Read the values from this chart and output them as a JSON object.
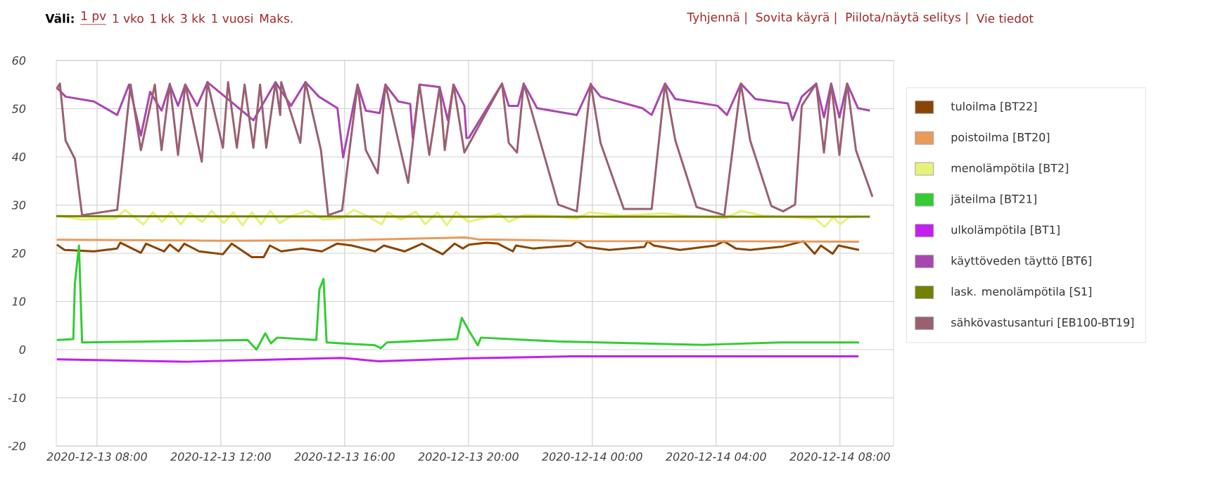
{
  "chart_data": {
    "type": "line",
    "annotations": [
      "Väli:",
      "1 pv",
      "1 vko",
      "1 kk",
      "3 kk",
      "1 vuosi",
      "Maks.",
      "Tyhjennä |",
      "Sovita käyrä |",
      "Piilota/näytä selitys |",
      "Vie tiedot"
    ],
    "xlim": [
      "2020-12-13T06:41",
      "2020-12-14T09:44"
    ],
    "ylim": [
      -20,
      60
    ],
    "xticks": [
      {
        "value": "2020-12-13T08:00",
        "label": "2020-12-13 08:00"
      },
      {
        "value": "2020-12-13T12:00",
        "label": "2020-12-13 12:00"
      },
      {
        "value": "2020-12-13T16:00",
        "label": "2020-12-13 16:00"
      },
      {
        "value": "2020-12-13T20:00",
        "label": "2020-12-13 20:00"
      },
      {
        "value": "2020-12-14T00:00",
        "label": "2020-12-14 00:00"
      },
      {
        "value": "2020-12-14T04:00",
        "label": "2020-12-14 04:00"
      },
      {
        "value": "2020-12-14T08:00",
        "label": "2020-12-14 08:00"
      }
    ],
    "yticks": [
      -20,
      -10,
      0,
      10,
      20,
      30,
      40,
      50,
      60
    ],
    "grid": true,
    "legend": "right",
    "marker": "none",
    "line_style": "solid",
    "series": [
      {
        "name": "tuloilma [BT22]",
        "color": "#8b4400",
        "x": [
          "2020-12-13T06:42",
          "2020-12-13T06:57",
          "2020-12-13T07:54",
          "2020-12-13T08:39",
          "2020-12-13T08:45",
          "2020-12-13T09:25",
          "2020-12-13T09:35",
          "2020-12-13T10:10",
          "2020-12-13T10:21",
          "2020-12-13T10:38",
          "2020-12-13T10:49",
          "2020-12-13T11:18",
          "2020-12-13T12:04",
          "2020-12-13T12:21",
          "2020-12-13T13:00",
          "2020-12-13T13:23",
          "2020-12-13T13:35",
          "2020-12-13T13:57",
          "2020-12-13T14:37",
          "2020-12-13T15:16",
          "2020-12-13T15:45",
          "2020-12-13T16:14",
          "2020-12-13T16:59",
          "2020-12-13T17:16",
          "2020-12-13T17:56",
          "2020-12-13T18:30",
          "2020-12-13T19:10",
          "2020-12-13T19:33",
          "2020-12-13T19:49",
          "2020-12-13T20:01",
          "2020-12-13T20:35",
          "2020-12-13T20:57",
          "2020-12-13T21:26",
          "2020-12-13T21:32",
          "2020-12-13T22:05",
          "2020-12-13T23:19",
          "2020-12-13T23:31",
          "2020-12-13T23:48",
          "2020-12-14T00:33",
          "2020-12-14T01:41",
          "2020-12-14T01:47",
          "2020-12-14T01:59",
          "2020-12-14T02:50",
          "2020-12-14T03:58",
          "2020-12-14T04:15",
          "2020-12-14T04:38",
          "2020-12-14T05:06",
          "2020-12-14T06:09",
          "2020-12-14T06:49",
          "2020-12-14T07:11",
          "2020-12-14T07:23",
          "2020-12-14T07:46",
          "2020-12-14T07:57",
          "2020-12-14T08:37"
        ],
        "values": [
          21.8,
          20.7,
          20.4,
          21.0,
          22.2,
          20.1,
          22.0,
          20.4,
          21.8,
          20.4,
          22.0,
          20.4,
          19.8,
          22.0,
          19.2,
          19.2,
          21.6,
          20.4,
          21.0,
          20.4,
          22.0,
          21.6,
          20.4,
          21.6,
          20.4,
          22.0,
          19.8,
          22.0,
          21.0,
          21.8,
          22.2,
          22.0,
          20.4,
          21.6,
          21.0,
          21.6,
          22.5,
          21.3,
          20.7,
          21.3,
          22.5,
          21.6,
          20.7,
          21.6,
          22.5,
          21.0,
          20.7,
          21.4,
          22.5,
          19.9,
          21.6,
          19.9,
          21.6,
          20.7
        ]
      },
      {
        "name": "poistoilma [BT20]",
        "color": "#e89a58",
        "x": [
          "2020-12-13T06:42",
          "2020-12-13T12:00",
          "2020-12-13T16:00",
          "2020-12-13T19:54",
          "2020-12-13T20:18",
          "2020-12-14T00:00",
          "2020-12-14T04:00",
          "2020-12-14T08:37"
        ],
        "values": [
          22.8,
          22.6,
          22.7,
          23.3,
          22.9,
          22.5,
          22.5,
          22.4
        ]
      },
      {
        "name": "menolämpötila [BT2]",
        "color": "#e6f27a",
        "x": [
          "2020-12-13T06:42",
          "2020-12-13T07:30",
          "2020-12-13T08:36",
          "2020-12-13T08:54",
          "2020-12-13T09:12",
          "2020-12-13T09:30",
          "2020-12-13T09:48",
          "2020-12-13T10:06",
          "2020-12-13T10:24",
          "2020-12-13T10:42",
          "2020-12-13T11:00",
          "2020-12-13T11:24",
          "2020-12-13T11:42",
          "2020-12-13T12:06",
          "2020-12-13T12:24",
          "2020-12-13T12:42",
          "2020-12-13T13:00",
          "2020-12-13T13:18",
          "2020-12-13T13:36",
          "2020-12-13T13:54",
          "2020-12-13T14:18",
          "2020-12-13T14:48",
          "2020-12-13T15:18",
          "2020-12-13T15:54",
          "2020-12-13T16:18",
          "2020-12-13T16:48",
          "2020-12-13T17:12",
          "2020-12-13T17:24",
          "2020-12-13T17:48",
          "2020-12-13T18:18",
          "2020-12-13T18:36",
          "2020-12-13T19:00",
          "2020-12-13T19:18",
          "2020-12-13T19:36",
          "2020-12-13T20:00",
          "2020-12-13T21:00",
          "2020-12-13T21:18",
          "2020-12-13T21:48",
          "2020-12-13T22:30",
          "2020-12-13T23:30",
          "2020-12-13T23:54",
          "2020-12-14T01:00",
          "2020-12-14T02:18",
          "2020-12-14T03:00",
          "2020-12-14T04:18",
          "2020-12-14T04:48",
          "2020-12-14T05:30",
          "2020-12-14T06:30",
          "2020-12-14T07:12",
          "2020-12-14T07:30",
          "2020-12-14T07:48",
          "2020-12-14T08:00",
          "2020-12-14T08:18",
          "2020-12-14T08:36"
        ],
        "values": [
          27.8,
          27.0,
          27.2,
          29.0,
          27.5,
          26.0,
          28.5,
          26.5,
          28.6,
          26.0,
          28.4,
          26.5,
          28.8,
          26.3,
          28.5,
          25.8,
          28.5,
          26.0,
          28.8,
          26.3,
          27.8,
          28.8,
          27.0,
          27.3,
          29.0,
          27.5,
          26.0,
          28.5,
          27.0,
          28.6,
          26.0,
          28.5,
          25.8,
          28.6,
          26.5,
          28.2,
          26.5,
          28.0,
          27.8,
          27.2,
          28.5,
          27.8,
          28.3,
          27.8,
          27.3,
          28.8,
          27.8,
          27.5,
          27.2,
          25.5,
          27.5,
          26.0,
          27.5,
          27.7
        ]
      },
      {
        "name": "jäteilma [BT21]",
        "color": "#33cc33",
        "x": [
          "2020-12-13T06:42",
          "2020-12-13T07:14",
          "2020-12-13T07:17",
          "2020-12-13T07:25",
          "2020-12-13T07:31",
          "2020-12-13T12:52",
          "2020-12-13T13:09",
          "2020-12-13T13:26",
          "2020-12-13T13:37",
          "2020-12-13T13:49",
          "2020-12-13T15:05",
          "2020-12-13T15:11",
          "2020-12-13T15:19",
          "2020-12-13T15:25",
          "2020-12-13T16:59",
          "2020-12-13T17:10",
          "2020-12-13T17:22",
          "2020-12-13T19:38",
          "2020-12-13T19:47",
          "2020-12-13T20:01",
          "2020-12-13T20:18",
          "2020-12-13T20:24",
          "2020-12-13T22:51",
          "2020-12-14T03:35",
          "2020-12-14T06:03",
          "2020-12-14T08:37"
        ],
        "values": [
          2.0,
          2.2,
          13.7,
          21.6,
          1.5,
          2.0,
          0.0,
          3.4,
          1.3,
          2.5,
          2.0,
          12.5,
          14.7,
          1.5,
          0.9,
          0.3,
          1.5,
          2.2,
          6.6,
          3.9,
          0.9,
          2.5,
          1.7,
          1.0,
          1.5,
          1.5
        ]
      },
      {
        "name": "ulkolämpötila [BT1]",
        "color": "#c020f0",
        "x": [
          "2020-12-13T06:42",
          "2020-12-13T10:54",
          "2020-12-13T15:54",
          "2020-12-13T17:06",
          "2020-12-13T20:00",
          "2020-12-13T23:18",
          "2020-12-14T08:36"
        ],
        "values": [
          -2.0,
          -2.5,
          -1.7,
          -2.4,
          -1.8,
          -1.4,
          -1.4
        ]
      },
      {
        "name": "käyttöveden täyttö [BT6]",
        "color": "#a846b0",
        "x": [
          "2020-12-13T06:41",
          "2020-12-13T06:59",
          "2020-12-13T07:54",
          "2020-12-13T08:39",
          "2020-12-13T09:02",
          "2020-12-13T09:25",
          "2020-12-13T09:43",
          "2020-12-13T10:05",
          "2020-12-13T10:21",
          "2020-12-13T10:37",
          "2020-12-13T10:51",
          "2020-12-13T11:14",
          "2020-12-13T11:34",
          "2020-12-13T12:08",
          "2020-12-13T13:03",
          "2020-12-13T13:46",
          "2020-12-13T14:16",
          "2020-12-13T14:44",
          "2020-12-13T15:10",
          "2020-12-13T15:46",
          "2020-12-13T15:57",
          "2020-12-13T16:25",
          "2020-12-13T16:41",
          "2020-12-13T17:08",
          "2020-12-13T17:19",
          "2020-12-13T17:44",
          "2020-12-13T18:07",
          "2020-12-13T18:12",
          "2020-12-13T18:25",
          "2020-12-13T19:04",
          "2020-12-13T19:20",
          "2020-12-13T19:31",
          "2020-12-13T19:52",
          "2020-12-13T19:56",
          "2020-12-13T20:01",
          "2020-12-13T21:05",
          "2020-12-13T21:18",
          "2020-12-13T21:36",
          "2020-12-13T21:47",
          "2020-12-13T22:13",
          "2020-12-13T23:30",
          "2020-12-13T23:57",
          "2020-12-14T00:16",
          "2020-12-14T01:37",
          "2020-12-14T01:55",
          "2020-12-14T02:21",
          "2020-12-14T02:41",
          "2020-12-14T04:03",
          "2020-12-14T04:21",
          "2020-12-14T04:48",
          "2020-12-14T05:16",
          "2020-12-14T06:19",
          "2020-12-14T06:28",
          "2020-12-14T06:46",
          "2020-12-14T07:14",
          "2020-12-14T07:29",
          "2020-12-14T07:43",
          "2020-12-14T07:59",
          "2020-12-14T08:14",
          "2020-12-14T08:35",
          "2020-12-14T08:58"
        ],
        "values": [
          54.5,
          52.5,
          51.5,
          48.7,
          55.0,
          44.4,
          53.5,
          49.6,
          55.0,
          50.6,
          55.0,
          50.6,
          55.5,
          52.5,
          47.6,
          55.5,
          50.6,
          55.5,
          52.5,
          50.1,
          39.9,
          55.0,
          49.6,
          49.1,
          55.0,
          51.5,
          51.0,
          43.9,
          55.0,
          54.5,
          47.6,
          55.0,
          50.6,
          43.9,
          44.0,
          55.2,
          50.6,
          50.6,
          55.2,
          50.1,
          48.7,
          55.0,
          52.5,
          50.1,
          48.7,
          55.2,
          52.0,
          50.6,
          48.7,
          55.2,
          52.0,
          51.1,
          47.6,
          52.5,
          55.2,
          48.2,
          55.2,
          48.2,
          55.2,
          50.1,
          49.6
        ]
      },
      {
        "name": "lask. menolämpötila [S1]",
        "color": "#738000",
        "x": [
          "2020-12-13T06:41",
          "2020-12-13T20:00",
          "2020-12-14T08:58"
        ],
        "values": [
          27.7,
          27.6,
          27.6
        ]
      },
      {
        "name": "sähkövastusanturi [EB100-BT19]",
        "color": "#9a6070",
        "x": [
          "2020-12-13T06:41",
          "2020-12-13T06:48",
          "2020-12-13T06:59",
          "2020-12-13T07:17",
          "2020-12-13T07:31",
          "2020-12-13T08:39",
          "2020-12-13T09:05",
          "2020-12-13T09:25",
          "2020-12-13T09:52",
          "2020-12-13T10:05",
          "2020-12-13T10:21",
          "2020-12-13T10:37",
          "2020-12-13T10:51",
          "2020-12-13T11:23",
          "2020-12-13T11:34",
          "2020-12-13T12:04",
          "2020-12-13T12:14",
          "2020-12-13T12:31",
          "2020-12-13T12:46",
          "2020-12-13T13:03",
          "2020-12-13T13:16",
          "2020-12-13T13:28",
          "2020-12-13T13:46",
          "2020-12-13T13:55",
          "2020-12-13T13:57",
          "2020-12-13T14:34",
          "2020-12-13T14:44",
          "2020-12-13T15:14",
          "2020-12-13T15:28",
          "2020-12-13T15:55",
          "2020-12-13T16:25",
          "2020-12-13T16:41",
          "2020-12-13T17:04",
          "2020-12-13T17:19",
          "2020-12-13T18:03",
          "2020-12-13T18:25",
          "2020-12-13T18:44",
          "2020-12-13T19:04",
          "2020-12-13T19:14",
          "2020-12-13T19:31",
          "2020-12-13T19:52",
          "2020-12-13T21:05",
          "2020-12-13T21:18",
          "2020-12-13T21:34",
          "2020-12-13T21:47",
          "2020-12-13T22:54",
          "2020-12-13T23:30",
          "2020-12-13T23:57",
          "2020-12-14T00:16",
          "2020-12-14T01:01",
          "2020-12-14T01:55",
          "2020-12-14T02:21",
          "2020-12-14T02:41",
          "2020-12-14T03:22",
          "2020-12-14T04:16",
          "2020-12-14T04:48",
          "2020-12-14T05:06",
          "2020-12-14T05:47",
          "2020-12-14T06:10",
          "2020-12-14T06:33",
          "2020-12-14T06:46",
          "2020-12-14T07:14",
          "2020-12-14T07:29",
          "2020-12-14T07:43",
          "2020-12-14T07:59",
          "2020-12-14T08:14",
          "2020-12-14T08:31",
          "2020-12-14T09:03"
        ],
        "values": [
          54.0,
          55.2,
          43.4,
          39.6,
          27.9,
          29.0,
          55.0,
          41.4,
          55.0,
          41.4,
          55.2,
          40.4,
          55.0,
          39.0,
          55.5,
          41.9,
          55.5,
          41.9,
          55.0,
          41.9,
          55.0,
          41.9,
          55.5,
          48.7,
          55.5,
          42.9,
          55.5,
          41.4,
          27.9,
          28.9,
          55.0,
          41.4,
          36.6,
          55.0,
          34.6,
          55.0,
          40.4,
          54.5,
          41.4,
          55.0,
          40.9,
          55.2,
          42.9,
          40.9,
          55.2,
          30.1,
          28.7,
          55.2,
          42.9,
          29.2,
          29.2,
          55.2,
          43.4,
          29.6,
          27.9,
          55.2,
          43.4,
          29.8,
          28.7,
          30.1,
          50.6,
          55.2,
          40.9,
          55.2,
          40.4,
          55.2,
          41.4,
          31.7
        ]
      }
    ]
  }
}
